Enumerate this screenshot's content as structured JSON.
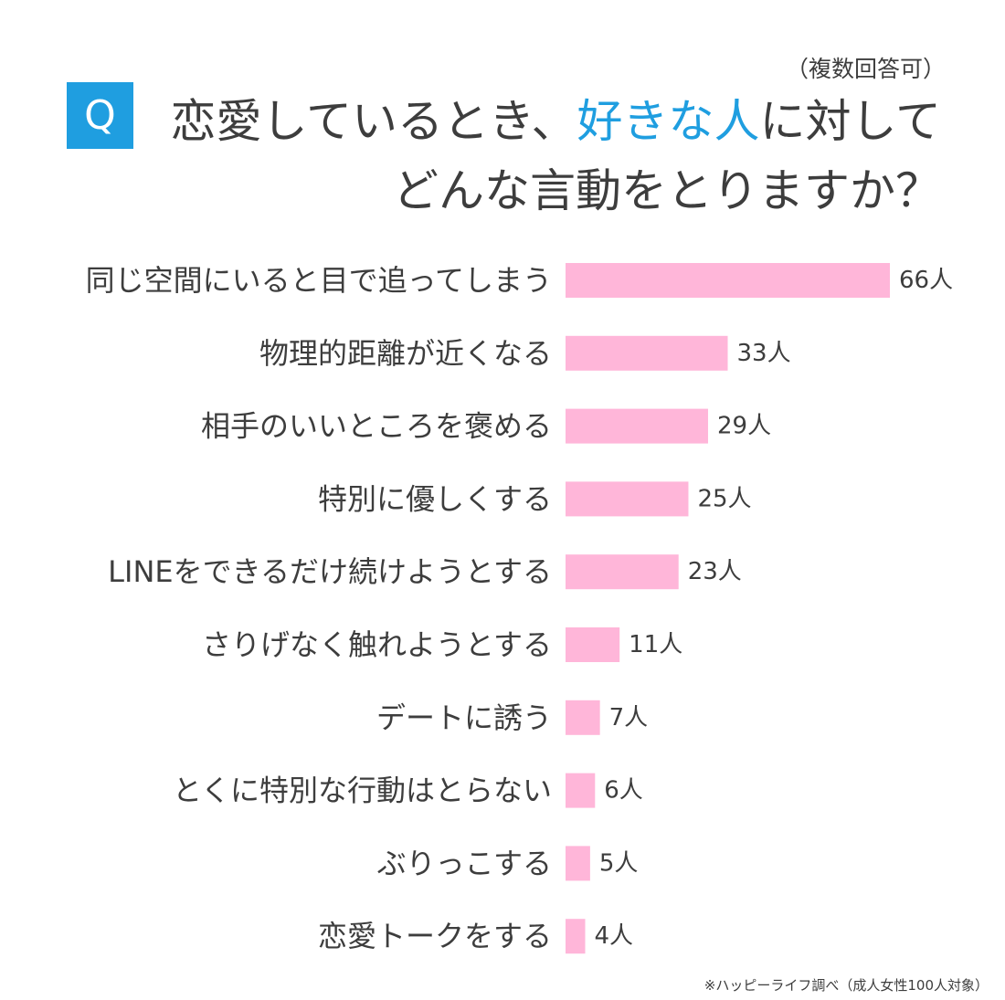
{
  "note": "（複数回答可）",
  "badge": "Q",
  "title": {
    "line1_before": "恋愛しているとき、",
    "line1_highlight": "好きな人",
    "line1_after": "に対して",
    "line2": "どんな言動をとりますか？"
  },
  "colors": {
    "bar": "#ffb6d9",
    "accent": "#1f9ee0",
    "text": "#3d3d3d"
  },
  "chart_data": {
    "type": "bar",
    "orientation": "horizontal",
    "categories": [
      "同じ空間にいると目で追ってしまう",
      "物理的距離が近くなる",
      "相手のいいところを褒める",
      "特別に優しくする",
      "LINEをできるだけ続けようとする",
      "さりげなく触れようとする",
      "デートに誘う",
      "とくに特別な行動はとらない",
      "ぶりっこする",
      "恋愛トークをする"
    ],
    "values": [
      66,
      33,
      29,
      25,
      23,
      11,
      7,
      6,
      5,
      4
    ],
    "value_labels": [
      "66人",
      "33人",
      "29人",
      "25人",
      "23人",
      "11人",
      "7人",
      "6人",
      "5人",
      "4人"
    ],
    "grid": false
  },
  "source": "※ハッピーライフ調べ（成人女性100人対象）"
}
